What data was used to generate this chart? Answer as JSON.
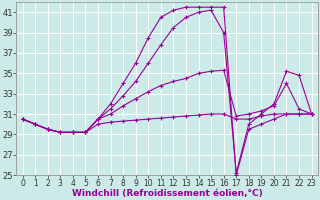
{
  "background_color": "#cceae7",
  "grid_color": "#ffffff",
  "line_color": "#990099",
  "xlabel": "Windchill (Refroidissement éolien,°C)",
  "xlabel_fontsize": 6.5,
  "xtick_fontsize": 5.5,
  "ytick_fontsize": 6.0,
  "xlim": [
    -0.5,
    23.5
  ],
  "ylim": [
    25,
    42
  ],
  "yticks": [
    25,
    27,
    29,
    31,
    33,
    35,
    37,
    39,
    41
  ],
  "xticks": [
    0,
    1,
    2,
    3,
    4,
    5,
    6,
    7,
    8,
    9,
    10,
    11,
    12,
    13,
    14,
    15,
    16,
    17,
    18,
    19,
    20,
    21,
    22,
    23
  ],
  "series": [
    {
      "x": [
        0,
        1,
        2,
        3,
        4,
        5,
        6,
        7,
        8,
        9,
        10,
        11,
        12,
        13,
        14,
        15,
        16,
        17,
        18,
        19,
        20,
        21,
        22,
        23
      ],
      "y": [
        30.5,
        30.0,
        29.5,
        29.2,
        29.2,
        29.2,
        30.0,
        30.2,
        30.3,
        30.4,
        30.5,
        30.6,
        30.7,
        30.8,
        30.9,
        31.0,
        31.0,
        30.5,
        30.5,
        30.8,
        31.0,
        31.0,
        31.0,
        31.0
      ]
    },
    {
      "x": [
        0,
        1,
        2,
        3,
        4,
        5,
        6,
        7,
        8,
        9,
        10,
        11,
        12,
        13,
        14,
        15,
        16,
        17,
        18,
        19,
        20,
        21,
        22,
        23
      ],
      "y": [
        30.5,
        30.0,
        29.5,
        29.2,
        29.2,
        29.2,
        30.5,
        31.0,
        31.8,
        32.5,
        33.2,
        33.8,
        34.2,
        34.5,
        35.0,
        35.2,
        35.3,
        30.8,
        31.0,
        31.3,
        31.8,
        34.0,
        31.5,
        31.0
      ]
    },
    {
      "x": [
        0,
        1,
        2,
        3,
        4,
        5,
        6,
        7,
        8,
        9,
        10,
        11,
        12,
        13,
        14,
        15,
        16,
        17,
        18,
        19,
        20,
        21,
        22,
        23
      ],
      "y": [
        30.5,
        30.0,
        29.5,
        29.2,
        29.2,
        29.2,
        30.5,
        31.5,
        32.8,
        34.2,
        36.0,
        37.8,
        39.5,
        40.5,
        41.0,
        41.2,
        39.0,
        25.2,
        30.0,
        31.0,
        32.0,
        35.2,
        34.8,
        31.0
      ]
    },
    {
      "x": [
        0,
        1,
        2,
        3,
        4,
        5,
        6,
        7,
        8,
        9,
        10,
        11,
        12,
        13,
        14,
        15,
        16,
        17,
        18,
        19,
        20,
        21,
        22,
        23
      ],
      "y": [
        30.5,
        30.0,
        29.5,
        29.2,
        29.2,
        29.2,
        30.5,
        32.0,
        34.0,
        36.0,
        38.5,
        40.5,
        41.2,
        41.5,
        41.5,
        41.5,
        41.5,
        25.0,
        29.5,
        30.0,
        30.5,
        31.0,
        31.0,
        31.0
      ]
    }
  ]
}
